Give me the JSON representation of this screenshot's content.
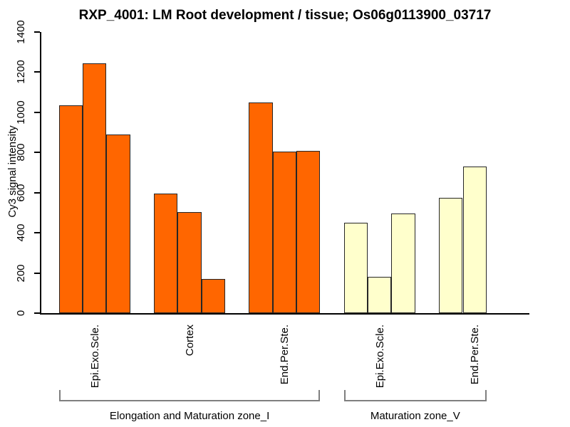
{
  "chart_data": {
    "type": "bar",
    "title": "RXP_4001: LM Root development / tissue; Os06g0113900_03717",
    "xlabel": "",
    "ylabel": "Cy3 signal intensity",
    "ylim": [
      0,
      1400
    ],
    "yticks": [
      0,
      200,
      400,
      600,
      800,
      1000,
      1200,
      1400
    ],
    "grid": false,
    "legend": "none",
    "bar_border_color": "#262626",
    "colors": {
      "zone_I_fill": "#FF6600",
      "zone_V_fill": "#FFFFCC"
    },
    "groups": [
      {
        "label": "Epi.Exo.Scle.",
        "zone": "Elongation and Maturation zone_I",
        "color": "#FF6600",
        "values": [
          1035,
          1245,
          890
        ]
      },
      {
        "label": "Cortex",
        "zone": "Elongation and Maturation zone_I",
        "color": "#FF6600",
        "values": [
          595,
          505,
          170
        ]
      },
      {
        "label": "End.Per.Ste.",
        "zone": "Elongation and Maturation zone_I",
        "color": "#FF6600",
        "values": [
          1050,
          805,
          810
        ]
      },
      {
        "label": "Epi.Exo.Scle.",
        "zone": "Maturation zone_V",
        "color": "#FFFFCC",
        "values": [
          450,
          180,
          495
        ]
      },
      {
        "label": "End.Per.Ste.",
        "zone": "Maturation zone_V",
        "color": "#FFFFCC",
        "values": [
          575,
          730
        ]
      }
    ],
    "zones": [
      {
        "label": "Elongation and Maturation zone_I",
        "group_start": 0,
        "group_end": 2
      },
      {
        "label": "Maturation zone_V",
        "group_start": 3,
        "group_end": 4
      }
    ]
  }
}
